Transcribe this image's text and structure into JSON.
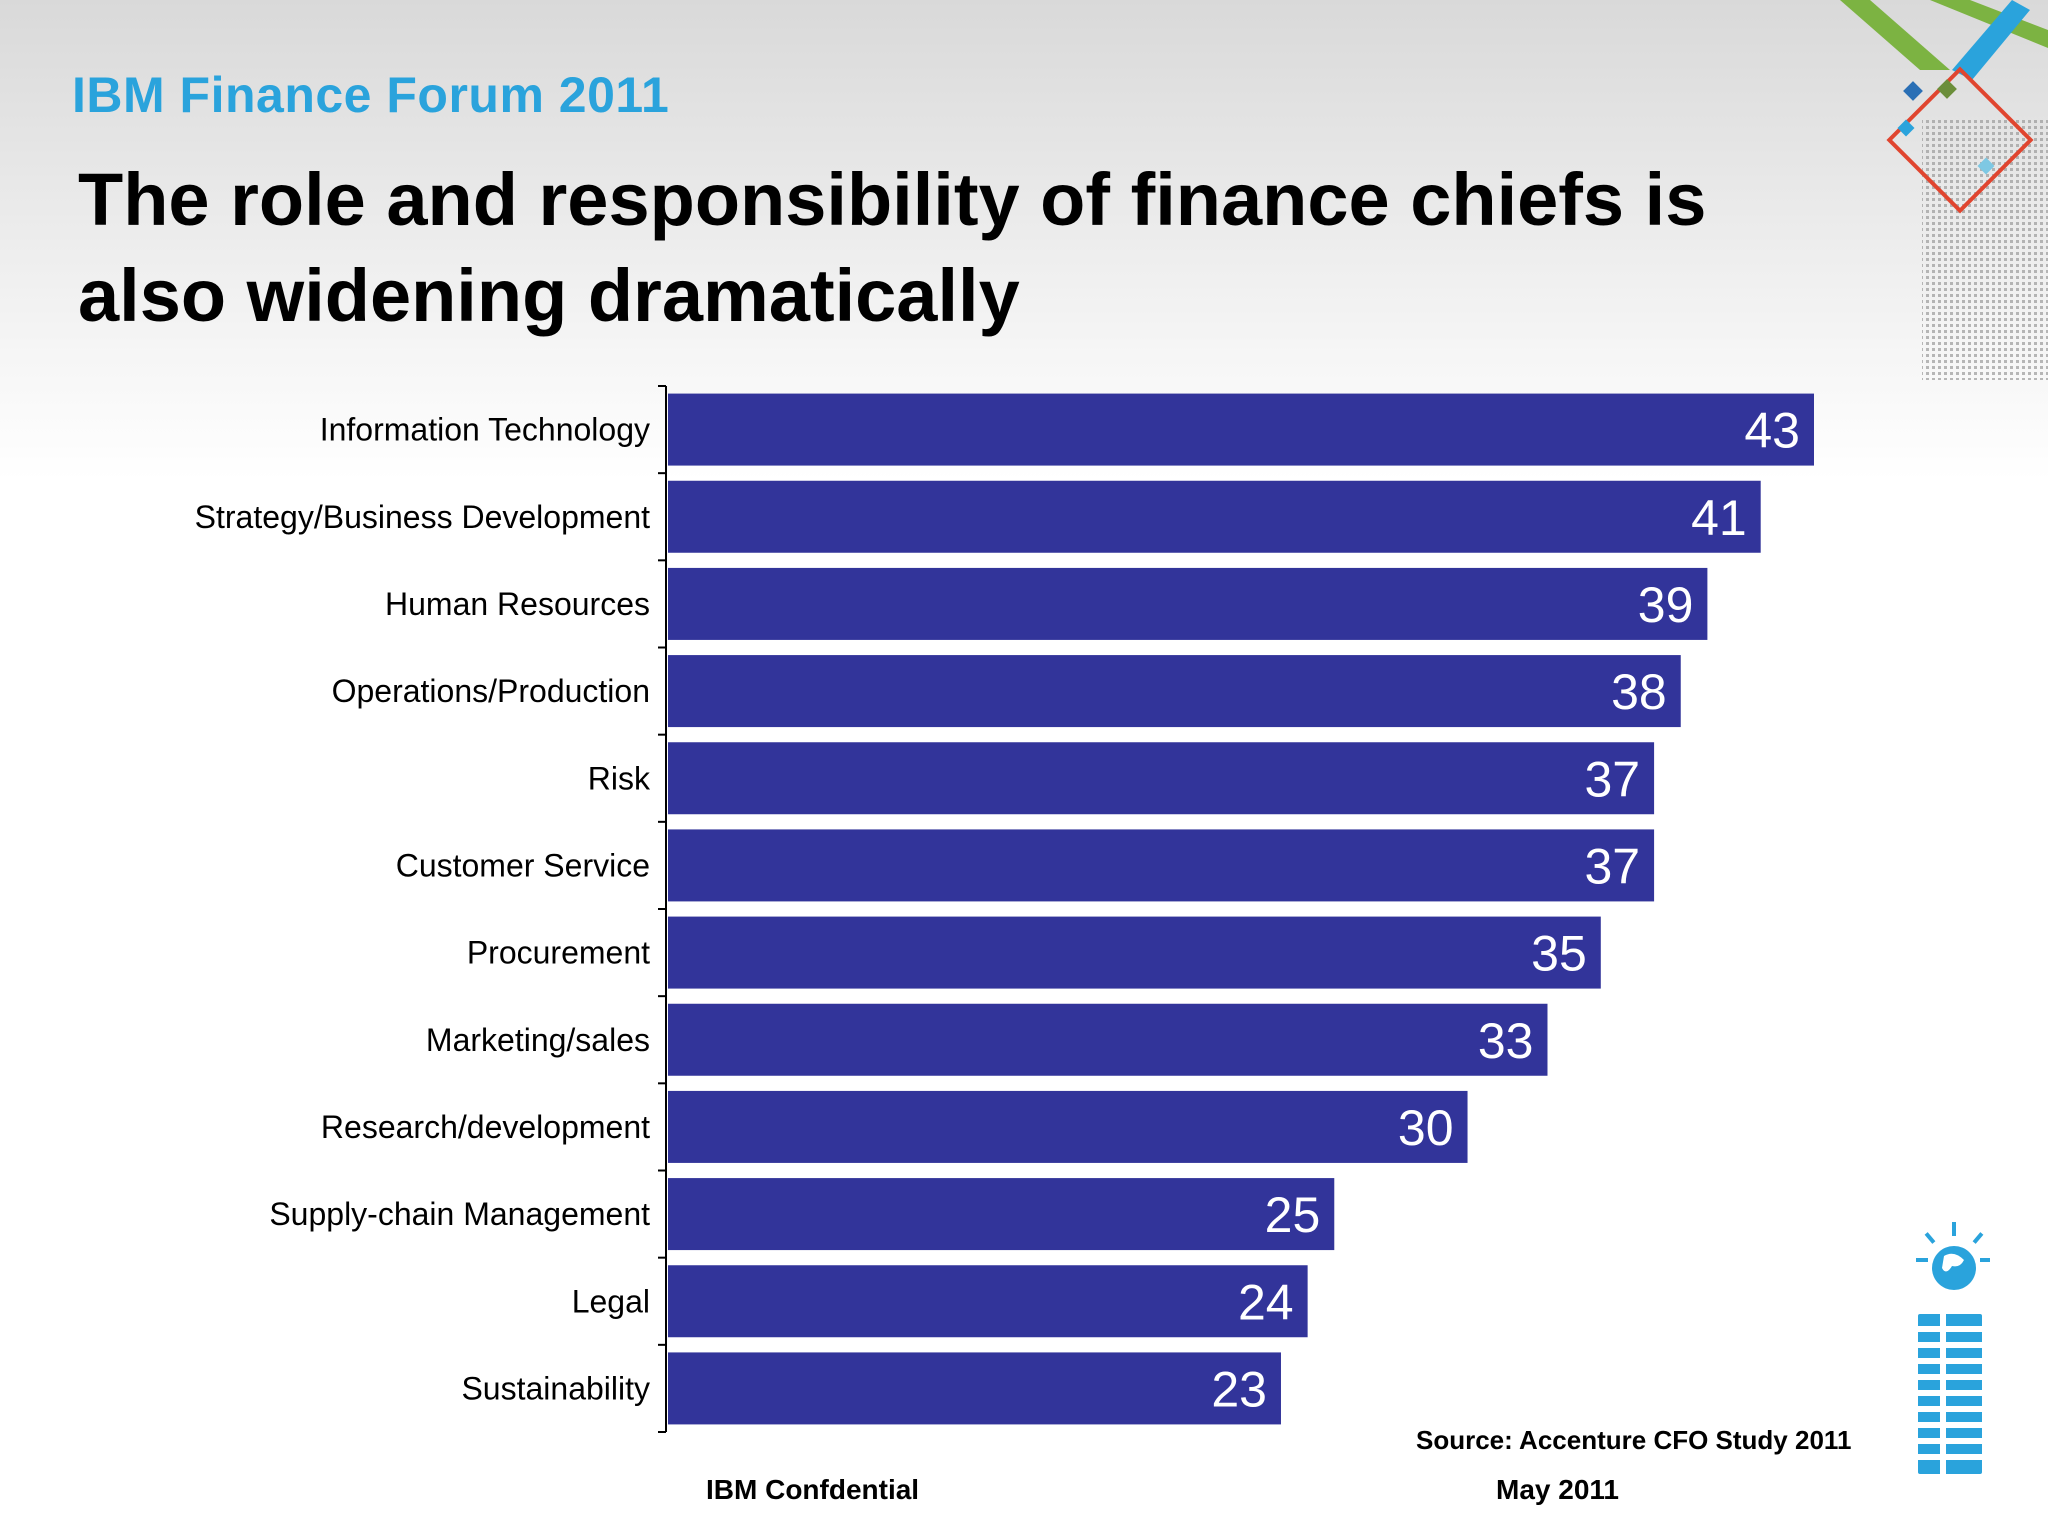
{
  "header": {
    "event_title": "IBM Finance Forum 2011",
    "slide_title": "The role and responsibility of finance chiefs is also widening dramatically"
  },
  "colors": {
    "bar": "#32349a",
    "event_title": "#2aa3dc",
    "value_label": "#ffffff"
  },
  "chart_data": {
    "type": "bar",
    "orientation": "horizontal",
    "categories": [
      "Information Technology",
      "Strategy/Business Development",
      "Human Resources",
      "Operations/Production",
      "Risk",
      "Customer Service",
      "Procurement",
      "Marketing/sales",
      "Research/development",
      "Supply-chain Management",
      "Legal",
      "Sustainability"
    ],
    "values": [
      43,
      41,
      39,
      38,
      37,
      37,
      35,
      33,
      30,
      25,
      24,
      23
    ],
    "data_labels": true,
    "xlim": [
      0,
      43
    ],
    "grid": false
  },
  "footer": {
    "source": "Source: Accenture CFO Study 2011",
    "confidential": "IBM Confdential",
    "date": "May 2011"
  },
  "icons": {
    "corner_graphic": "decorative-diamonds-icon",
    "logo": "ibm-logo-icon"
  }
}
